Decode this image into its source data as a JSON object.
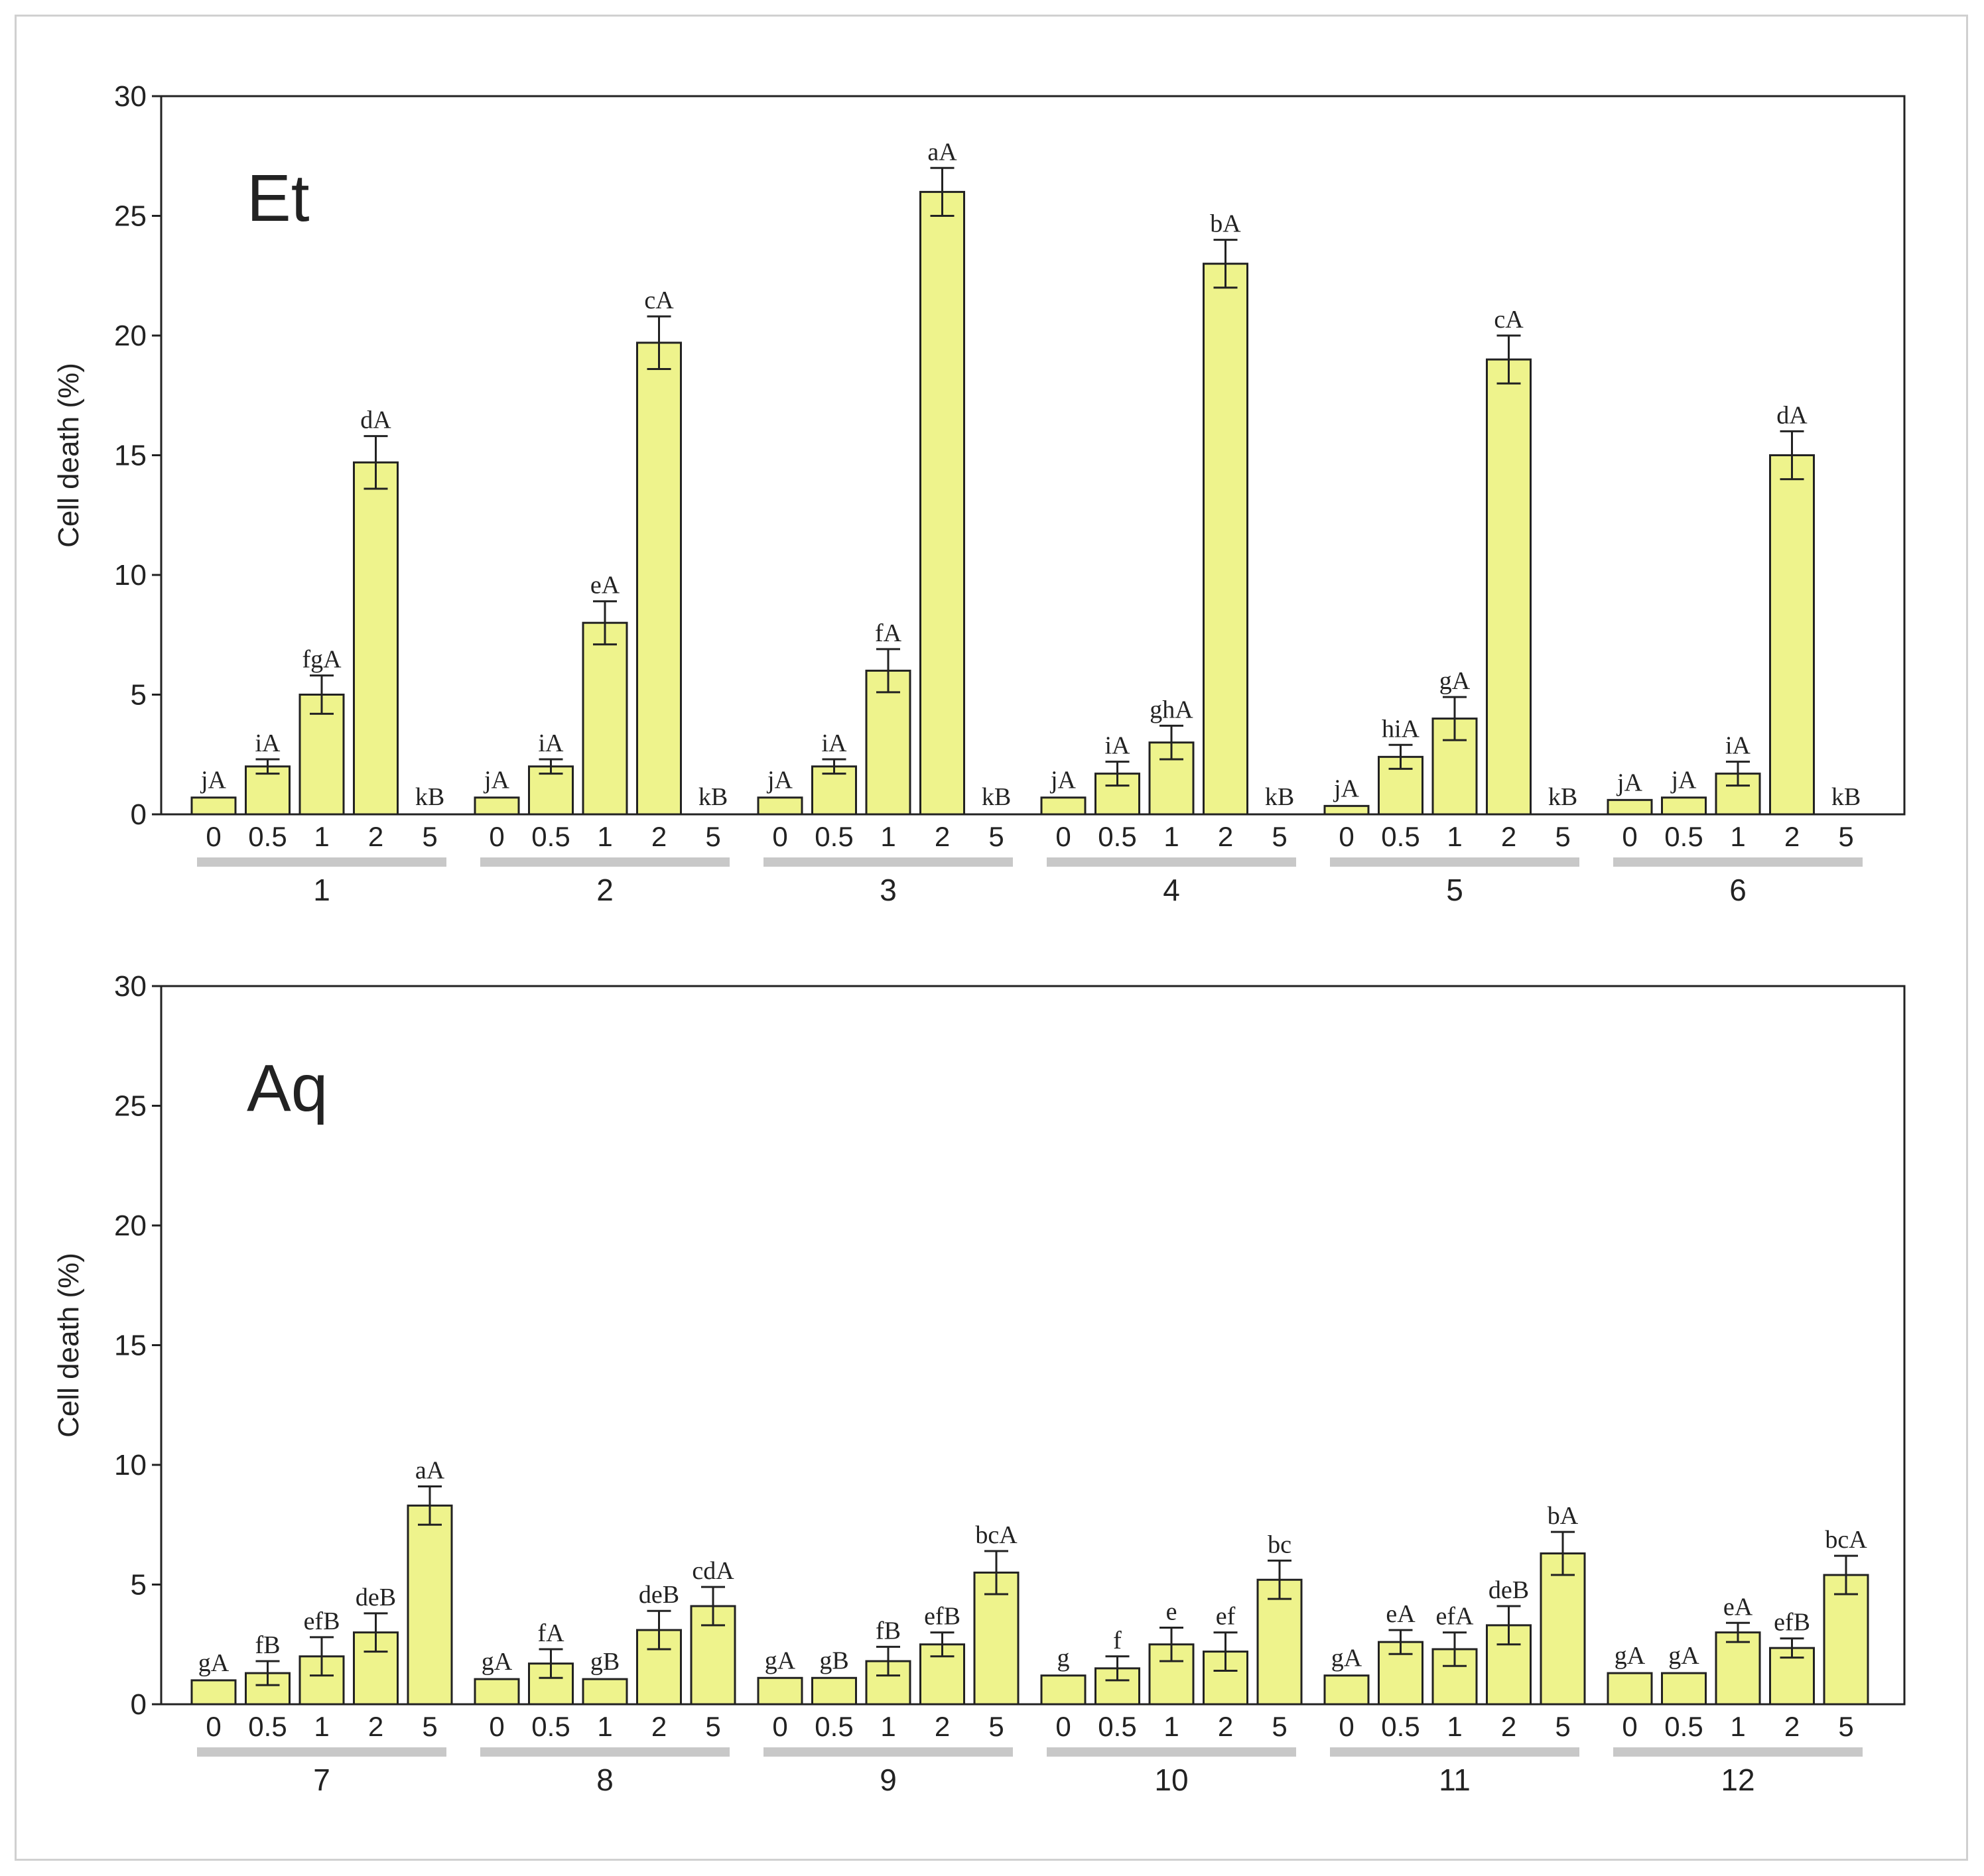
{
  "chart_data": [
    {
      "type": "bar",
      "panel_label": "Et",
      "ylabel": "Cell death (%)",
      "ylim": [
        0,
        30
      ],
      "yticks": [
        "0",
        "5",
        "10",
        "15",
        "20",
        "25",
        "30"
      ],
      "concentration_labels": [
        "0",
        "0.5",
        "1",
        "2",
        "5"
      ],
      "groups": [
        {
          "name": "1",
          "values": [
            0.7,
            2.0,
            5.0,
            14.7,
            0
          ],
          "errors": [
            0,
            0.3,
            0.8,
            1.1,
            0
          ],
          "letters": [
            "jA",
            "iA",
            "fgA",
            "dA",
            "kB"
          ]
        },
        {
          "name": "2",
          "values": [
            0.7,
            2.0,
            8.0,
            19.7,
            0
          ],
          "errors": [
            0,
            0.3,
            0.9,
            1.1,
            0
          ],
          "letters": [
            "jA",
            "iA",
            "eA",
            "cA",
            "kB"
          ]
        },
        {
          "name": "3",
          "values": [
            0.7,
            2.0,
            6.0,
            26.0,
            0
          ],
          "errors": [
            0,
            0.3,
            0.9,
            1.0,
            0
          ],
          "letters": [
            "jA",
            "iA",
            "fA",
            "aA",
            "kB"
          ]
        },
        {
          "name": "4",
          "values": [
            0.7,
            1.7,
            3.0,
            23.0,
            0
          ],
          "errors": [
            0,
            0.5,
            0.7,
            1.0,
            0
          ],
          "letters": [
            "jA",
            "iA",
            "ghA",
            "bA",
            "kB"
          ]
        },
        {
          "name": "5",
          "values": [
            0.35,
            2.4,
            4.0,
            19.0,
            0
          ],
          "errors": [
            0,
            0.5,
            0.9,
            1.0,
            0
          ],
          "letters": [
            "jA",
            "hiA",
            "gA",
            "cA",
            "kB"
          ]
        },
        {
          "name": "6",
          "values": [
            0.6,
            0.7,
            1.7,
            15.0,
            0
          ],
          "errors": [
            0,
            0,
            0.5,
            1.0,
            0
          ],
          "letters": [
            "jA",
            "jA",
            "iA",
            "dA",
            "kB"
          ]
        }
      ]
    },
    {
      "type": "bar",
      "panel_label": "Aq",
      "ylabel": "Cell death (%)",
      "ylim": [
        0,
        30
      ],
      "yticks": [
        "0",
        "5",
        "10",
        "15",
        "20",
        "25",
        "30"
      ],
      "concentration_labels": [
        "0",
        "0.5",
        "1",
        "2",
        "5"
      ],
      "groups": [
        {
          "name": "7",
          "values": [
            1.0,
            1.3,
            2.0,
            3.0,
            8.3
          ],
          "errors": [
            0,
            0.5,
            0.8,
            0.8,
            0.8
          ],
          "letters": [
            "gA",
            "fB",
            "efB",
            "deB",
            "aA"
          ]
        },
        {
          "name": "8",
          "values": [
            1.05,
            1.7,
            1.05,
            3.1,
            4.1
          ],
          "errors": [
            0,
            0.6,
            0,
            0.8,
            0.8
          ],
          "letters": [
            "gA",
            "fA",
            "gB",
            "deB",
            "cdA"
          ]
        },
        {
          "name": "9",
          "values": [
            1.1,
            1.1,
            1.8,
            2.5,
            5.5
          ],
          "errors": [
            0,
            0,
            0.6,
            0.5,
            0.9
          ],
          "letters": [
            "gA",
            "gB",
            "fB",
            "efB",
            "bcA"
          ]
        },
        {
          "name": "10",
          "values": [
            1.2,
            1.5,
            2.5,
            2.2,
            5.2
          ],
          "errors": [
            0,
            0.5,
            0.7,
            0.8,
            0.8
          ],
          "letters": [
            "g",
            "f",
            "e",
            "ef",
            "bc"
          ]
        },
        {
          "name": "11",
          "values": [
            1.2,
            2.6,
            2.3,
            3.3,
            6.3
          ],
          "errors": [
            0,
            0.5,
            0.7,
            0.8,
            0.9
          ],
          "letters": [
            "gA",
            "eA",
            "efA",
            "deB",
            "bA"
          ]
        },
        {
          "name": "12",
          "values": [
            1.3,
            1.3,
            3.0,
            2.35,
            5.4
          ],
          "errors": [
            0,
            0,
            0.4,
            0.4,
            0.8
          ],
          "letters": [
            "gA",
            "gA",
            "eA",
            "efB",
            "bcA"
          ]
        }
      ]
    }
  ],
  "colors": {
    "bar_fill": "#eef38c",
    "bar_stroke": "#222222",
    "group_underline": "#c8c8c8",
    "frame": "#d0d0d0"
  }
}
